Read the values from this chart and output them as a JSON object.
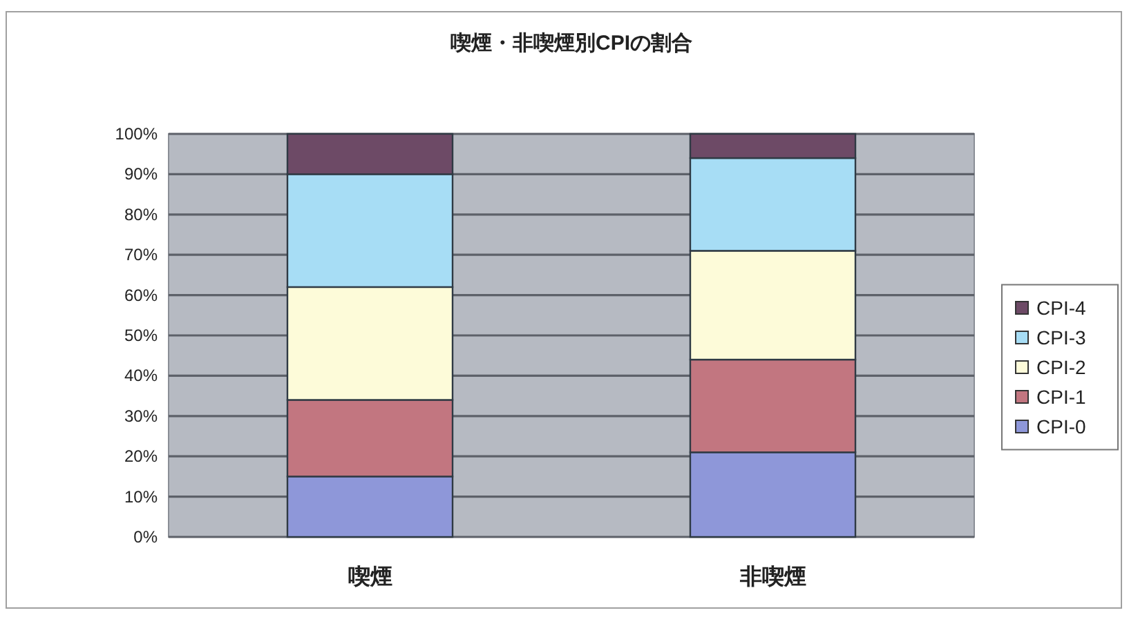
{
  "chart_data": {
    "type": "bar",
    "title": "喫煙・非喫煙別CPIの割合",
    "categories": [
      "喫煙",
      "非喫煙"
    ],
    "stacked": true,
    "series": [
      {
        "name": "CPI-0",
        "color": "#8e97d9",
        "values": [
          15,
          21
        ]
      },
      {
        "name": "CPI-1",
        "color": "#c27680",
        "values": [
          19,
          23
        ]
      },
      {
        "name": "CPI-2",
        "color": "#fdfbd9",
        "values": [
          28,
          27
        ]
      },
      {
        "name": "CPI-3",
        "color": "#a7ddf5",
        "values": [
          28,
          23
        ]
      },
      {
        "name": "CPI-4",
        "color": "#6d4a66",
        "values": [
          10,
          6
        ]
      }
    ],
    "ylim": [
      0,
      100
    ],
    "yticks": [
      {
        "value": 0,
        "label": "0%"
      },
      {
        "value": 10,
        "label": "10%"
      },
      {
        "value": 20,
        "label": "20%"
      },
      {
        "value": 30,
        "label": "30%"
      },
      {
        "value": 40,
        "label": "40%"
      },
      {
        "value": 50,
        "label": "50%"
      },
      {
        "value": 60,
        "label": "60%"
      },
      {
        "value": 70,
        "label": "70%"
      },
      {
        "value": 80,
        "label": "80%"
      },
      {
        "value": 90,
        "label": "90%"
      },
      {
        "value": 100,
        "label": "100%"
      }
    ],
    "grid": "y",
    "legend": "right"
  }
}
